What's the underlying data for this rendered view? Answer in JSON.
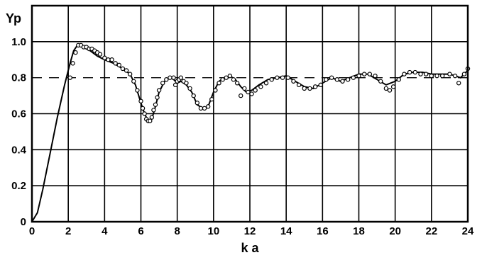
{
  "chart_data": {
    "type": "line",
    "title": "",
    "xlabel": "k a",
    "ylabel": "Yp",
    "xlim": [
      0,
      24
    ],
    "ylim": [
      0,
      1.2
    ],
    "grid": true,
    "x_ticks": [
      0,
      2,
      4,
      6,
      8,
      10,
      12,
      14,
      16,
      18,
      20,
      22,
      24
    ],
    "y_ticks": [
      0,
      0.2,
      0.4,
      0.6,
      0.8,
      1.0
    ],
    "x_tick_labels": [
      "0",
      "2",
      "4",
      "6",
      "8",
      "10",
      "12",
      "14",
      "16",
      "18",
      "20",
      "22",
      "24"
    ],
    "y_tick_labels": [
      "0",
      "0.2",
      "0.4",
      "0.6",
      "0.8",
      "1.0"
    ],
    "reference_lines": [
      {
        "y": 0.8,
        "style": "dashed"
      }
    ],
    "series": [
      {
        "style": "solid-line",
        "x": [
          0,
          0.3,
          0.6,
          1.0,
          1.4,
          1.8,
          2.1,
          2.3,
          2.5,
          2.8,
          3.2,
          3.6,
          4.0,
          4.5,
          5.0,
          5.4,
          5.7,
          6.0,
          6.2,
          6.4,
          6.6,
          6.8,
          7.0,
          7.3,
          7.6,
          7.8,
          8.0,
          8.2,
          8.5,
          8.8,
          9.1,
          9.4,
          9.7,
          10.0,
          10.3,
          10.6,
          10.9,
          11.2,
          11.5,
          11.8,
          12.1,
          12.5,
          13.0,
          13.5,
          14.0,
          14.5,
          15.0,
          15.5,
          16.0,
          16.5,
          17.0,
          17.5,
          18.0,
          18.5,
          19.0,
          19.5,
          20.0,
          20.5,
          21.0,
          21.5,
          22.0,
          22.5,
          23.0,
          23.3,
          23.6,
          24.0
        ],
        "y": [
          0,
          0.05,
          0.18,
          0.38,
          0.58,
          0.76,
          0.88,
          0.95,
          0.98,
          0.97,
          0.95,
          0.92,
          0.9,
          0.88,
          0.85,
          0.82,
          0.76,
          0.66,
          0.6,
          0.56,
          0.57,
          0.64,
          0.72,
          0.78,
          0.8,
          0.79,
          0.77,
          0.78,
          0.76,
          0.72,
          0.65,
          0.63,
          0.64,
          0.72,
          0.78,
          0.8,
          0.81,
          0.79,
          0.75,
          0.72,
          0.73,
          0.76,
          0.79,
          0.8,
          0.81,
          0.78,
          0.75,
          0.74,
          0.77,
          0.8,
          0.78,
          0.8,
          0.82,
          0.82,
          0.79,
          0.76,
          0.78,
          0.82,
          0.83,
          0.83,
          0.82,
          0.82,
          0.82,
          0.81,
          0.8,
          0.84
        ]
      },
      {
        "style": "open-circles",
        "x": [
          2.1,
          2.25,
          2.4,
          2.55,
          2.7,
          2.85,
          3.0,
          3.15,
          3.3,
          3.45,
          3.6,
          3.75,
          4.0,
          4.2,
          4.4,
          4.6,
          4.8,
          5.0,
          5.2,
          5.4,
          5.6,
          5.8,
          6.0,
          6.1,
          6.2,
          6.3,
          6.4,
          6.5,
          6.6,
          6.7,
          6.8,
          6.9,
          7.0,
          7.2,
          7.4,
          7.6,
          7.8,
          7.9,
          8.0,
          8.1,
          8.2,
          8.35,
          8.5,
          8.7,
          8.9,
          9.1,
          9.3,
          9.5,
          9.7,
          9.9,
          10.1,
          10.3,
          10.5,
          10.7,
          10.9,
          11.1,
          11.3,
          11.5,
          11.7,
          11.9,
          12.1,
          12.3,
          12.6,
          12.9,
          13.2,
          13.5,
          13.8,
          14.1,
          14.4,
          14.7,
          15.0,
          15.3,
          15.6,
          15.9,
          16.2,
          16.5,
          16.8,
          17.1,
          17.4,
          17.7,
          18.0,
          18.3,
          18.6,
          18.9,
          19.2,
          19.5,
          19.7,
          19.9,
          20.2,
          20.5,
          20.8,
          21.1,
          21.4,
          21.7,
          22.0,
          22.3,
          22.6,
          23.0,
          23.3,
          23.5,
          23.8,
          24.0
        ],
        "y": [
          0.8,
          0.88,
          0.94,
          0.98,
          0.98,
          0.97,
          0.97,
          0.96,
          0.96,
          0.95,
          0.94,
          0.93,
          0.91,
          0.9,
          0.9,
          0.88,
          0.87,
          0.85,
          0.84,
          0.82,
          0.78,
          0.73,
          0.67,
          0.63,
          0.6,
          0.57,
          0.56,
          0.56,
          0.58,
          0.62,
          0.65,
          0.69,
          0.73,
          0.77,
          0.79,
          0.8,
          0.8,
          0.76,
          0.78,
          0.79,
          0.8,
          0.78,
          0.77,
          0.74,
          0.7,
          0.66,
          0.63,
          0.63,
          0.64,
          0.68,
          0.73,
          0.77,
          0.79,
          0.8,
          0.81,
          0.79,
          0.77,
          0.7,
          0.74,
          0.72,
          0.71,
          0.73,
          0.75,
          0.77,
          0.79,
          0.8,
          0.8,
          0.8,
          0.78,
          0.76,
          0.74,
          0.74,
          0.75,
          0.76,
          0.79,
          0.8,
          0.79,
          0.78,
          0.79,
          0.8,
          0.81,
          0.82,
          0.82,
          0.81,
          0.78,
          0.74,
          0.73,
          0.75,
          0.79,
          0.82,
          0.83,
          0.83,
          0.82,
          0.82,
          0.81,
          0.81,
          0.81,
          0.82,
          0.81,
          0.77,
          0.82,
          0.85
        ]
      }
    ]
  }
}
